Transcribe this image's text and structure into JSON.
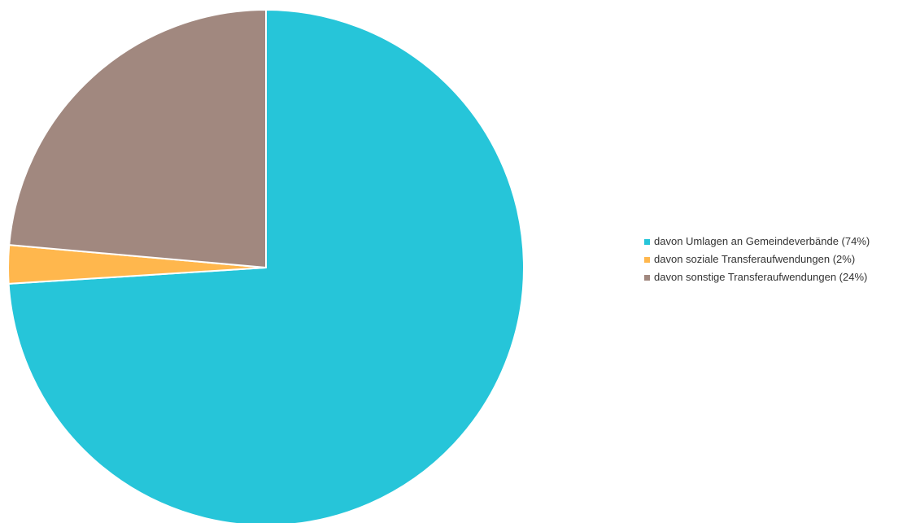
{
  "chart_data": {
    "type": "pie",
    "title": "",
    "start_angle_deg": 0,
    "direction": "clockwise",
    "legend_position": "right",
    "slices": [
      {
        "label": "davon Umlagen an Gemeindeverbände (74%)",
        "value": 74,
        "color": "#26C5D9"
      },
      {
        "label": "davon soziale Transferaufwendungen (2%)",
        "value": 2.4,
        "color": "#FFB74D"
      },
      {
        "label": "davon sonstige Transferaufwendungen (24%)",
        "value": 23.6,
        "color": "#A1887F"
      }
    ]
  }
}
